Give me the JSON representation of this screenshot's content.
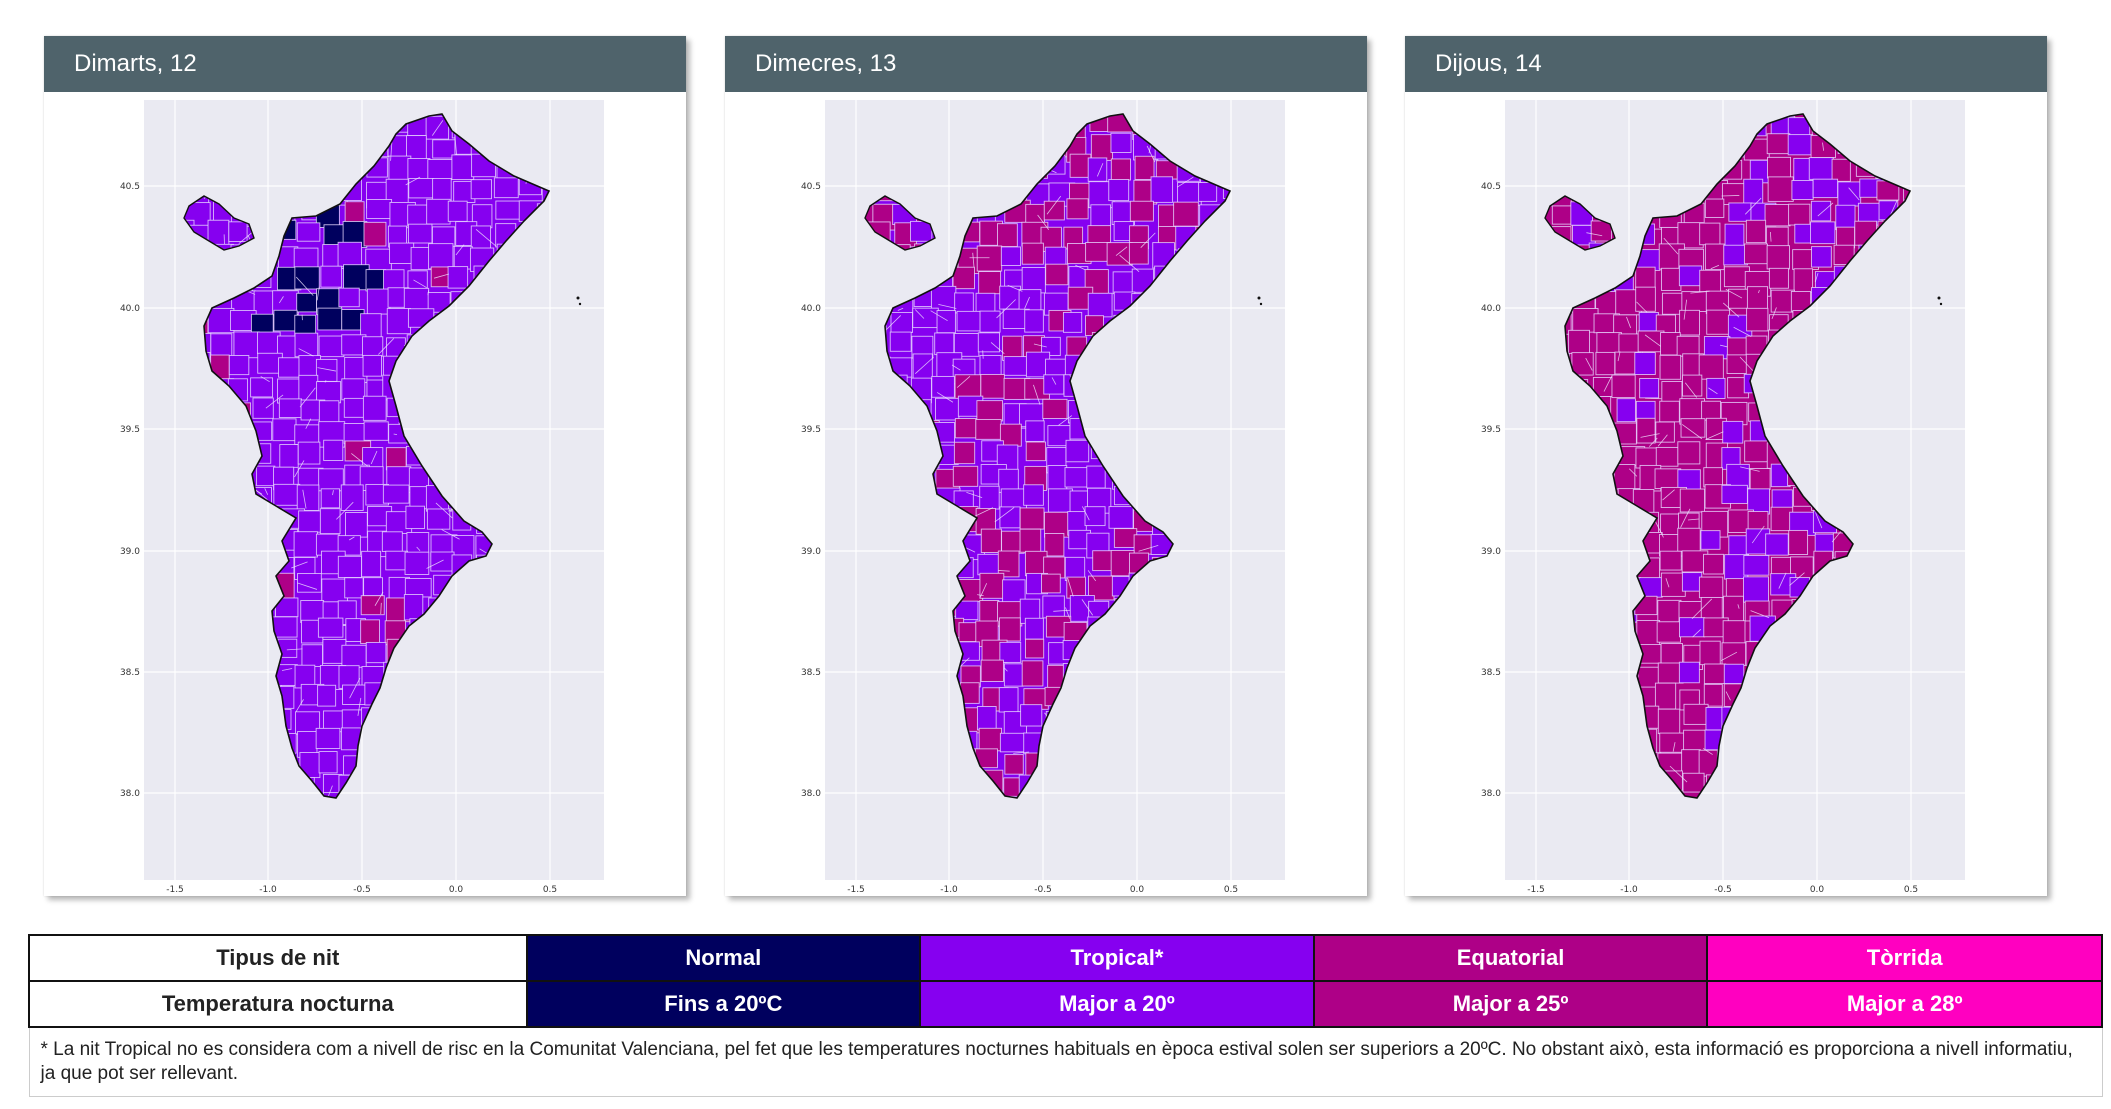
{
  "panels": [
    {
      "title": "Dimarts, 12",
      "base_color": "#8600f0",
      "variant": 0
    },
    {
      "title": "Dimecres, 13",
      "base_color": "#8600f0",
      "variant": 1
    },
    {
      "title": "Dijous, 14",
      "base_color": "#ae0087",
      "variant": 2
    }
  ],
  "axes": {
    "x_ticks": [
      "-1.5",
      "-1.0",
      "-0.5",
      "0.0",
      "0.5"
    ],
    "y_ticks": [
      "40.5",
      "40.0",
      "39.5",
      "39.0",
      "38.5",
      "38.0"
    ]
  },
  "legend": {
    "row1_label": "Tipus de nit",
    "row2_label": "Temperatura nocturna",
    "categories": [
      {
        "name": "Normal",
        "threshold": "Fins a 20ºC",
        "color": "#00005e"
      },
      {
        "name": "Tropical*",
        "threshold": "Major a 20º",
        "color": "#8600f0"
      },
      {
        "name": "Equatorial",
        "threshold": "Major a 25º",
        "color": "#ae0087"
      },
      {
        "name": "Tòrrida",
        "threshold": "Major a 28º",
        "color": "#ff00c0"
      }
    ],
    "footnote": "* La nit Tropical no es considera com a nivell de risc en la Comunitat Valenciana, pel fet que les temperatures nocturnes habituals en època estival solen ser superiors a 20ºC. No obstant això, esta informació es proporciona a nivell informatiu, ja que pot ser rellevant."
  }
}
